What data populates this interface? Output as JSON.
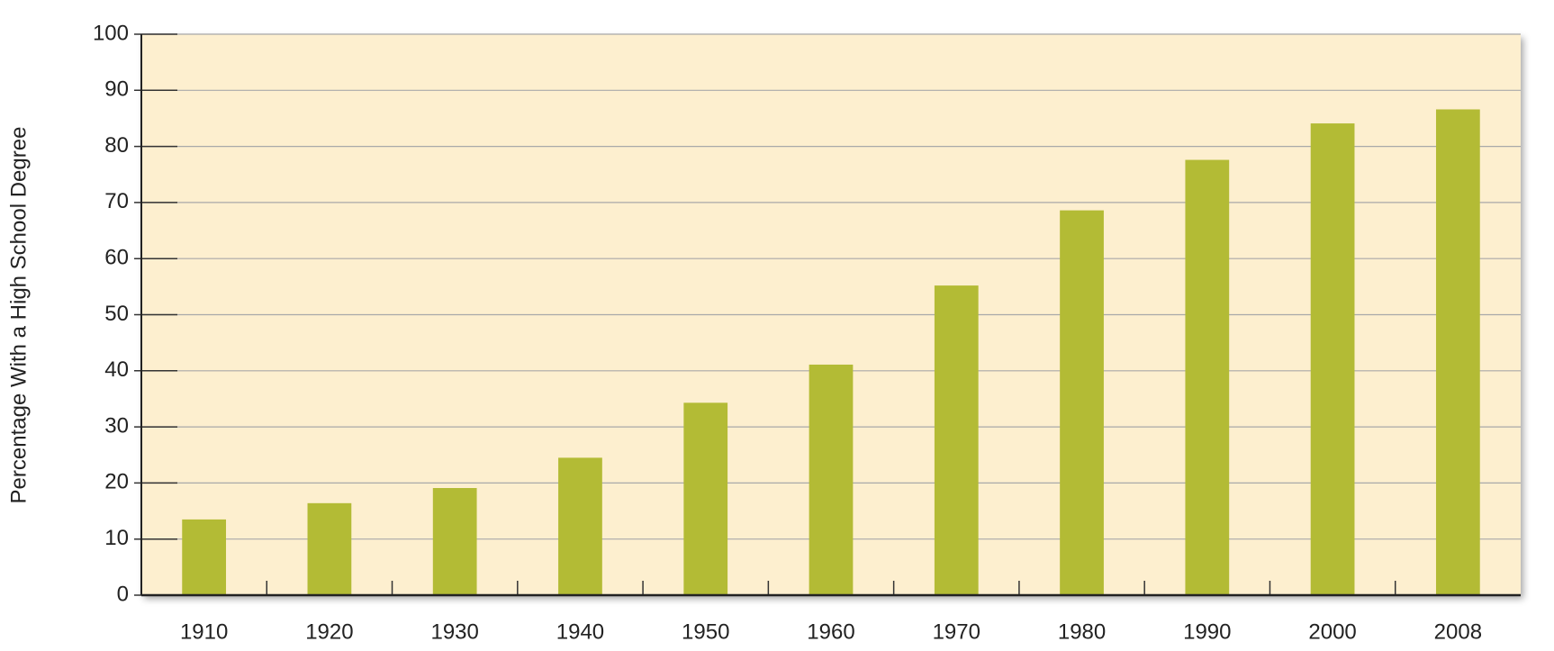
{
  "chart_data": {
    "type": "bar",
    "y_label": "Percentage With a High School Degree",
    "categories": [
      "1910",
      "1920",
      "1930",
      "1940",
      "1950",
      "1960",
      "1970",
      "1980",
      "1990",
      "2000",
      "2008"
    ],
    "values": [
      13.5,
      16.4,
      19.1,
      24.5,
      34.3,
      41.1,
      55.2,
      68.6,
      77.6,
      84.1,
      86.6
    ],
    "color": "#b3bb35",
    "ylim": [
      0,
      100
    ],
    "yticks": [
      0,
      10,
      20,
      30,
      40,
      50,
      60,
      70,
      80,
      90,
      100
    ],
    "grid": true
  }
}
